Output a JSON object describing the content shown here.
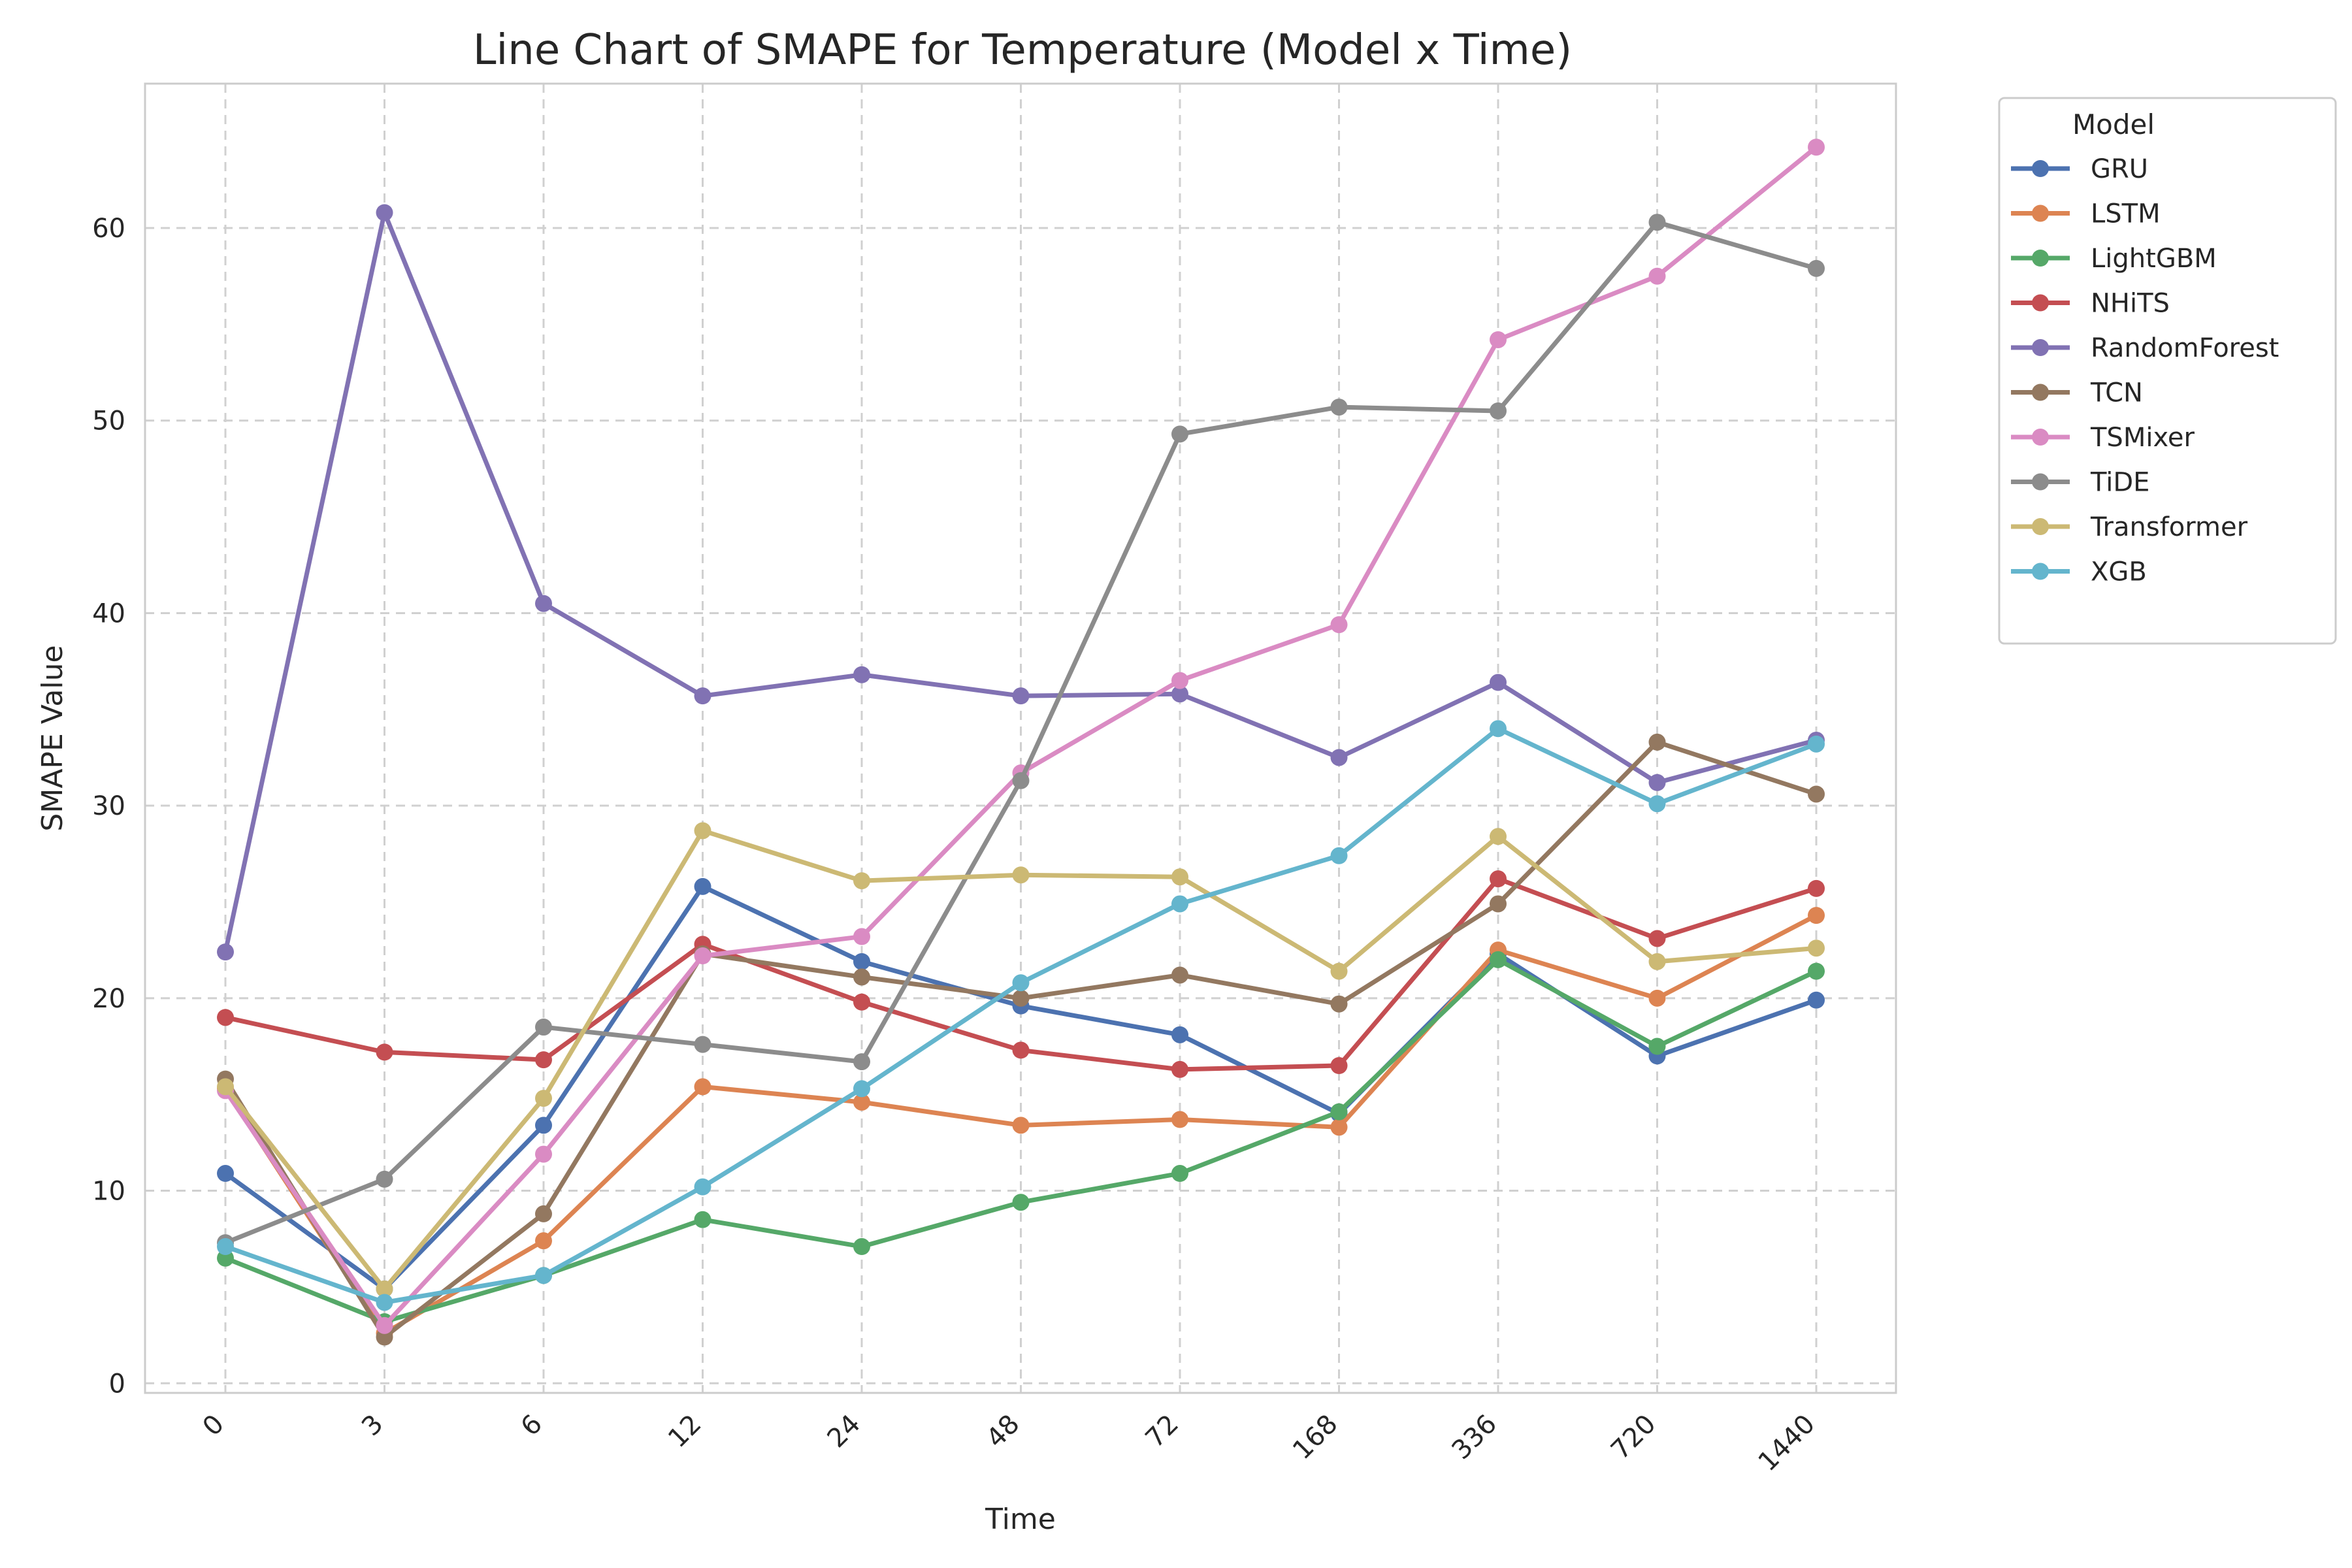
{
  "chart_data": {
    "type": "line",
    "title": "Line Chart of SMAPE for Temperature (Model x Time)",
    "xlabel": "Time",
    "ylabel": "SMAPE Value",
    "categories": [
      "0",
      "3",
      "6",
      "12",
      "24",
      "48",
      "72",
      "168",
      "336",
      "720",
      "1440"
    ],
    "ylim": [
      -0.5,
      67.5
    ],
    "yticks": [
      0,
      10,
      20,
      30,
      40,
      50,
      60
    ],
    "grid": true,
    "legend": {
      "title": "Model",
      "placement": "outside-top-right"
    },
    "series": [
      {
        "name": "GRU",
        "color": "#4c72b0",
        "values": [
          10.9,
          4.9,
          13.4,
          25.8,
          21.9,
          19.6,
          18.1,
          14.0,
          22.3,
          17.0,
          19.9
        ]
      },
      {
        "name": "LSTM",
        "color": "#dd8452",
        "values": [
          15.3,
          2.6,
          7.4,
          15.4,
          14.6,
          13.4,
          13.7,
          13.3,
          22.5,
          20.0,
          24.3
        ]
      },
      {
        "name": "LightGBM",
        "color": "#55a868",
        "values": [
          6.5,
          3.2,
          5.6,
          8.5,
          7.1,
          9.4,
          10.9,
          14.1,
          22.0,
          17.5,
          21.4
        ]
      },
      {
        "name": "NHiTS",
        "color": "#c44e52",
        "values": [
          19.0,
          17.2,
          16.8,
          22.8,
          19.8,
          17.3,
          16.3,
          16.5,
          26.2,
          23.1,
          25.7
        ]
      },
      {
        "name": "RandomForest",
        "color": "#8172b3",
        "values": [
          22.4,
          60.8,
          40.5,
          35.7,
          36.8,
          35.7,
          35.8,
          32.5,
          36.4,
          31.2,
          33.4
        ]
      },
      {
        "name": "TCN",
        "color": "#937860",
        "values": [
          15.8,
          2.4,
          8.8,
          22.3,
          21.1,
          20.0,
          21.2,
          19.7,
          24.9,
          33.3,
          30.6
        ]
      },
      {
        "name": "TSMixer",
        "color": "#da8bc3",
        "values": [
          15.2,
          3.0,
          11.9,
          22.2,
          23.2,
          31.7,
          36.5,
          39.4,
          54.2,
          57.5,
          64.2
        ]
      },
      {
        "name": "TiDE",
        "color": "#8c8c8c",
        "values": [
          7.3,
          10.6,
          18.5,
          17.6,
          16.7,
          31.3,
          49.3,
          50.7,
          50.5,
          60.3,
          57.9
        ]
      },
      {
        "name": "Transformer",
        "color": "#ccb974",
        "values": [
          15.4,
          4.9,
          14.8,
          28.7,
          26.1,
          26.4,
          26.3,
          21.4,
          28.4,
          21.9,
          22.6
        ]
      },
      {
        "name": "XGB",
        "color": "#64b5cd",
        "values": [
          7.1,
          4.2,
          5.6,
          10.2,
          15.3,
          20.8,
          24.9,
          27.4,
          34.0,
          30.1,
          33.2
        ]
      }
    ]
  }
}
